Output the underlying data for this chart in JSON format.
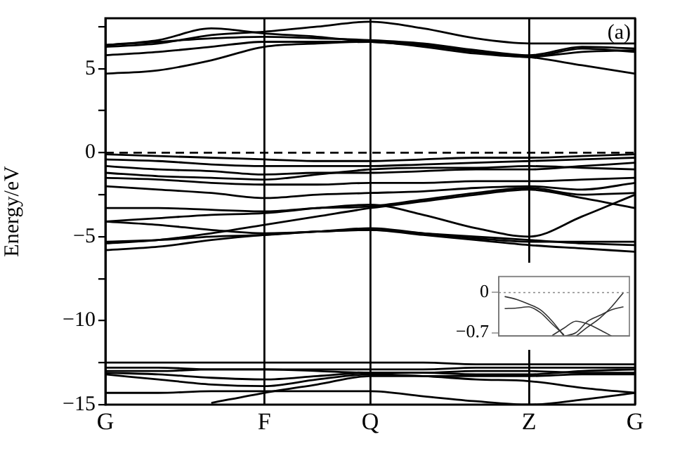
{
  "chart_data": [
    {
      "type": "line",
      "ylabel": "Energy/eV",
      "annotations": [
        "(a)"
      ],
      "marker": "none",
      "line_style": "solid",
      "grid": "x",
      "categories": [
        "G",
        null,
        null,
        "F",
        null,
        "Q",
        null,
        null,
        "Z",
        null,
        "G"
      ],
      "ylim": [
        -15,
        8
      ],
      "yticks": [
        {
          "value": -15,
          "label": "−15"
        },
        {
          "value": -12.5,
          "label": null
        },
        {
          "value": -10,
          "label": "−10"
        },
        {
          "value": -7.5,
          "label": null
        },
        {
          "value": -5,
          "label": "−5"
        },
        {
          "value": -2.5,
          "label": null
        },
        {
          "value": 0,
          "label": "0"
        },
        {
          "value": 2.5,
          "label": null
        },
        {
          "value": 5,
          "label": "5"
        },
        {
          "value": 7.5,
          "label": null
        }
      ],
      "ref_lines": [
        {
          "axis": "y",
          "value": 0,
          "line_style": "dashed",
          "color": "#000000"
        }
      ],
      "series": [
        {
          "color": "#000000",
          "values": [
            4.7,
            4.9,
            5.5,
            6.3,
            6.5,
            6.6,
            6.4,
            6.0,
            5.7,
            5.2,
            4.7
          ]
        },
        {
          "color": "#000000",
          "values": [
            5.8,
            6.0,
            6.3,
            6.6,
            6.6,
            6.6,
            6.3,
            5.9,
            5.7,
            6.0,
            6.1
          ]
        },
        {
          "color": "#000000",
          "values": [
            6.3,
            6.5,
            7.0,
            7.2,
            7.5,
            7.8,
            7.4,
            6.8,
            6.5,
            6.5,
            6.5
          ]
        },
        {
          "color": "#000000",
          "values": [
            6.4,
            6.7,
            7.4,
            7.1,
            6.9,
            6.6,
            6.4,
            6.0,
            5.7,
            6.2,
            6.0
          ]
        },
        {
          "color": "#000000",
          "values": [
            6.4,
            6.6,
            6.8,
            6.9,
            6.8,
            6.7,
            6.5,
            6.1,
            5.8,
            6.3,
            6.2
          ]
        },
        {
          "color": "#000000",
          "values": [
            -0.1,
            -0.2,
            -0.3,
            -0.4,
            -0.5,
            -0.5,
            -0.4,
            -0.3,
            -0.3,
            -0.2,
            -0.1
          ]
        },
        {
          "color": "#000000",
          "values": [
            -0.4,
            -0.5,
            -0.7,
            -0.8,
            -0.8,
            -0.8,
            -0.7,
            -0.6,
            -0.5,
            -0.4,
            -0.3
          ]
        },
        {
          "color": "#000000",
          "values": [
            -0.8,
            -1.0,
            -1.1,
            -1.3,
            -1.2,
            -1.2,
            -1.1,
            -1.0,
            -1.0,
            -0.8,
            -0.6
          ]
        },
        {
          "color": "#000000",
          "values": [
            -1.2,
            -1.4,
            -1.5,
            -1.6,
            -1.3,
            -1.0,
            -0.9,
            -0.9,
            -0.8,
            -0.9,
            -1.0
          ]
        },
        {
          "color": "#000000",
          "values": [
            -1.5,
            -1.6,
            -1.8,
            -1.9,
            -1.9,
            -1.8,
            -1.8,
            -1.7,
            -1.7,
            -1.6,
            -1.5
          ]
        },
        {
          "color": "#000000",
          "values": [
            -2.0,
            -2.2,
            -2.4,
            -2.7,
            -2.5,
            -2.4,
            -2.3,
            -2.1,
            -2.0,
            -2.2,
            -1.8
          ]
        },
        {
          "color": "#000000",
          "values": [
            -3.3,
            -3.3,
            -3.4,
            -3.5,
            -3.3,
            -3.2,
            -2.8,
            -2.4,
            -2.1,
            -2.5,
            -2.4
          ]
        },
        {
          "color": "#000000",
          "values": [
            -4.1,
            -3.9,
            -3.7,
            -3.6,
            -3.3,
            -3.1,
            -3.7,
            -4.5,
            -5.0,
            -3.8,
            -2.5
          ]
        },
        {
          "color": "#000000",
          "values": [
            -5.3,
            -5.2,
            -5.0,
            -4.9,
            -4.7,
            -4.6,
            -4.8,
            -5.0,
            -5.2,
            -5.4,
            -5.5
          ]
        },
        {
          "color": "#000000",
          "values": [
            -5.8,
            -5.6,
            -5.2,
            -4.9,
            -4.7,
            -4.6,
            -4.9,
            -5.2,
            -5.5,
            -5.7,
            -5.9
          ]
        },
        {
          "color": "#000000",
          "values": [
            -5.4,
            -5.2,
            -4.8,
            -4.3,
            -3.8,
            -3.3,
            -2.9,
            -2.5,
            -2.2,
            -2.7,
            -3.3
          ]
        },
        {
          "color": "#000000",
          "values": [
            -4.1,
            -4.3,
            -4.6,
            -4.8,
            -4.7,
            -4.5,
            -4.8,
            -5.1,
            -5.3,
            -5.3,
            -5.3
          ]
        },
        {
          "color": "#000000",
          "values": [
            -12.5,
            -12.5,
            -12.5,
            -12.5,
            -12.5,
            -12.5,
            -12.5,
            -12.6,
            -12.6,
            -12.6,
            -12.6
          ]
        },
        {
          "color": "#000000",
          "values": [
            -12.8,
            -12.8,
            -12.9,
            -12.9,
            -12.9,
            -12.9,
            -12.9,
            -12.8,
            -12.8,
            -12.8,
            -12.8
          ]
        },
        {
          "color": "#000000",
          "values": [
            -13.0,
            -13.0,
            -12.9,
            -12.9,
            -13.0,
            -13.1,
            -13.1,
            -13.0,
            -13.0,
            -13.1,
            -13.1
          ]
        },
        {
          "color": "#000000",
          "values": [
            -13.1,
            -13.2,
            -13.4,
            -13.5,
            -13.3,
            -13.1,
            -13.1,
            -13.2,
            -13.2,
            -13.0,
            -12.9
          ]
        },
        {
          "color": "#000000",
          "values": [
            -14.3,
            -14.3,
            -14.2,
            -14.2,
            -14.2,
            -14.2,
            -14.5,
            -14.8,
            -15.0,
            -14.7,
            -14.3
          ]
        },
        {
          "color": "#000000",
          "values": [
            -13.2,
            -13.5,
            -13.8,
            -13.9,
            -13.5,
            -13.2,
            -13.3,
            -13.5,
            -13.6,
            -14.0,
            -14.3
          ]
        },
        {
          "color": "#000000",
          "values": [
            null,
            null,
            -14.9,
            -14.3,
            -13.8,
            -13.3,
            -13.3,
            -13.3,
            -13.3,
            -13.2,
            -13.2
          ]
        }
      ]
    },
    {
      "type": "line",
      "marker": "none",
      "line_style": "solid",
      "grid": false,
      "tick_labels": "y",
      "categories": [
        null,
        null,
        null,
        null,
        null,
        null,
        null,
        null,
        null,
        null,
        null
      ],
      "ylim": [
        -0.76,
        0.28
      ],
      "yticks": [
        {
          "value": -0.7,
          "label": "−0.7"
        },
        {
          "value": 0,
          "label": "0"
        }
      ],
      "ref_lines": [
        {
          "axis": "y",
          "value": 0,
          "line_style": "dotted",
          "color": "#888888"
        }
      ],
      "series": [
        {
          "color": "#333333",
          "values": [
            -0.07,
            -0.12,
            -0.2,
            -0.3,
            -0.5,
            -0.76,
            null,
            null,
            null,
            null,
            null
          ]
        },
        {
          "color": "#333333",
          "values": [
            -0.28,
            -0.27,
            -0.25,
            -0.35,
            -0.55,
            -0.74,
            null,
            null,
            null,
            null,
            null
          ]
        },
        {
          "color": "#333333",
          "values": [
            null,
            null,
            null,
            null,
            -0.75,
            -0.62,
            -0.5,
            -0.55,
            -0.65,
            -0.76,
            null
          ]
        },
        {
          "color": "#333333",
          "values": [
            null,
            null,
            null,
            null,
            null,
            null,
            -0.76,
            -0.6,
            -0.45,
            -0.25,
            0.0
          ]
        },
        {
          "color": "#333333",
          "values": [
            null,
            null,
            null,
            null,
            null,
            -0.76,
            -0.7,
            -0.5,
            -0.4,
            -0.3,
            -0.25
          ]
        }
      ]
    }
  ]
}
